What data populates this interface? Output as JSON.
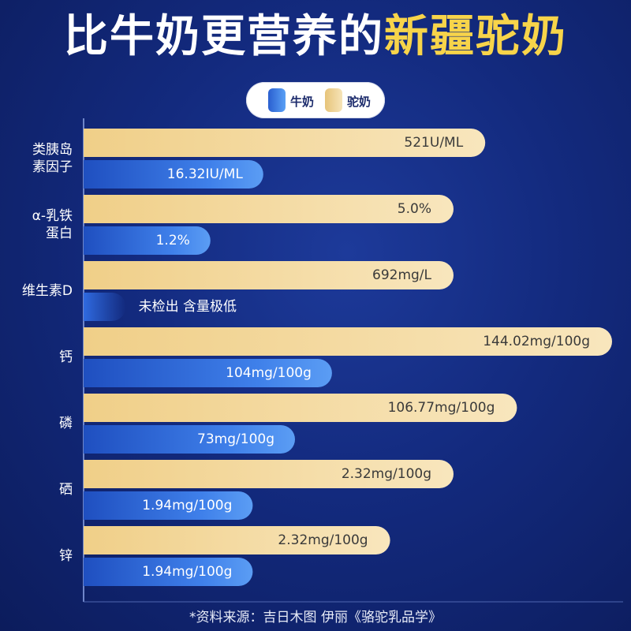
{
  "title": {
    "part1": "比牛奶更营养的",
    "part2": "新疆驼奶"
  },
  "legend": [
    {
      "label": "牛奶",
      "color": "#3d7be6"
    },
    {
      "label": "驼奶",
      "color": "#f2d9a0"
    }
  ],
  "chart_data": {
    "type": "bar",
    "orientation": "horizontal",
    "categories": [
      "类胰岛素因子",
      "α-乳铁蛋白",
      "维生素D",
      "钙",
      "磷",
      "硒",
      "锌"
    ],
    "category_lines": [
      [
        "类胰岛",
        "素因子"
      ],
      [
        "α-乳铁",
        "蛋白"
      ],
      [
        "维生素D"
      ],
      [
        "钙"
      ],
      [
        "磷"
      ],
      [
        "硒"
      ],
      [
        "锌"
      ]
    ],
    "series": [
      {
        "name": "驼奶",
        "color": "#f2d9a0",
        "value_labels": [
          "521U/ML",
          "5.0%",
          "692mg/L",
          "144.02mg/100g",
          "106.77mg/100g",
          "2.32mg/100g",
          "2.32mg/100g"
        ],
        "bar_fraction": [
          0.76,
          0.7,
          0.7,
          1.0,
          0.82,
          0.7,
          0.58
        ]
      },
      {
        "name": "牛奶",
        "color": "#3d7be6",
        "value_labels": [
          "16.32IU/ML",
          "1.2%",
          "未检出 含量极低",
          "104mg/100g",
          "73mg/100g",
          "1.94mg/100g",
          "1.94mg/100g"
        ],
        "bar_fraction": [
          0.34,
          0.24,
          0.08,
          0.47,
          0.4,
          0.32,
          0.32
        ]
      }
    ],
    "grid": false,
    "legend_position": "top-center"
  },
  "footnote": "*资料来源：吉日木图 伊丽《骆驼乳品学》"
}
